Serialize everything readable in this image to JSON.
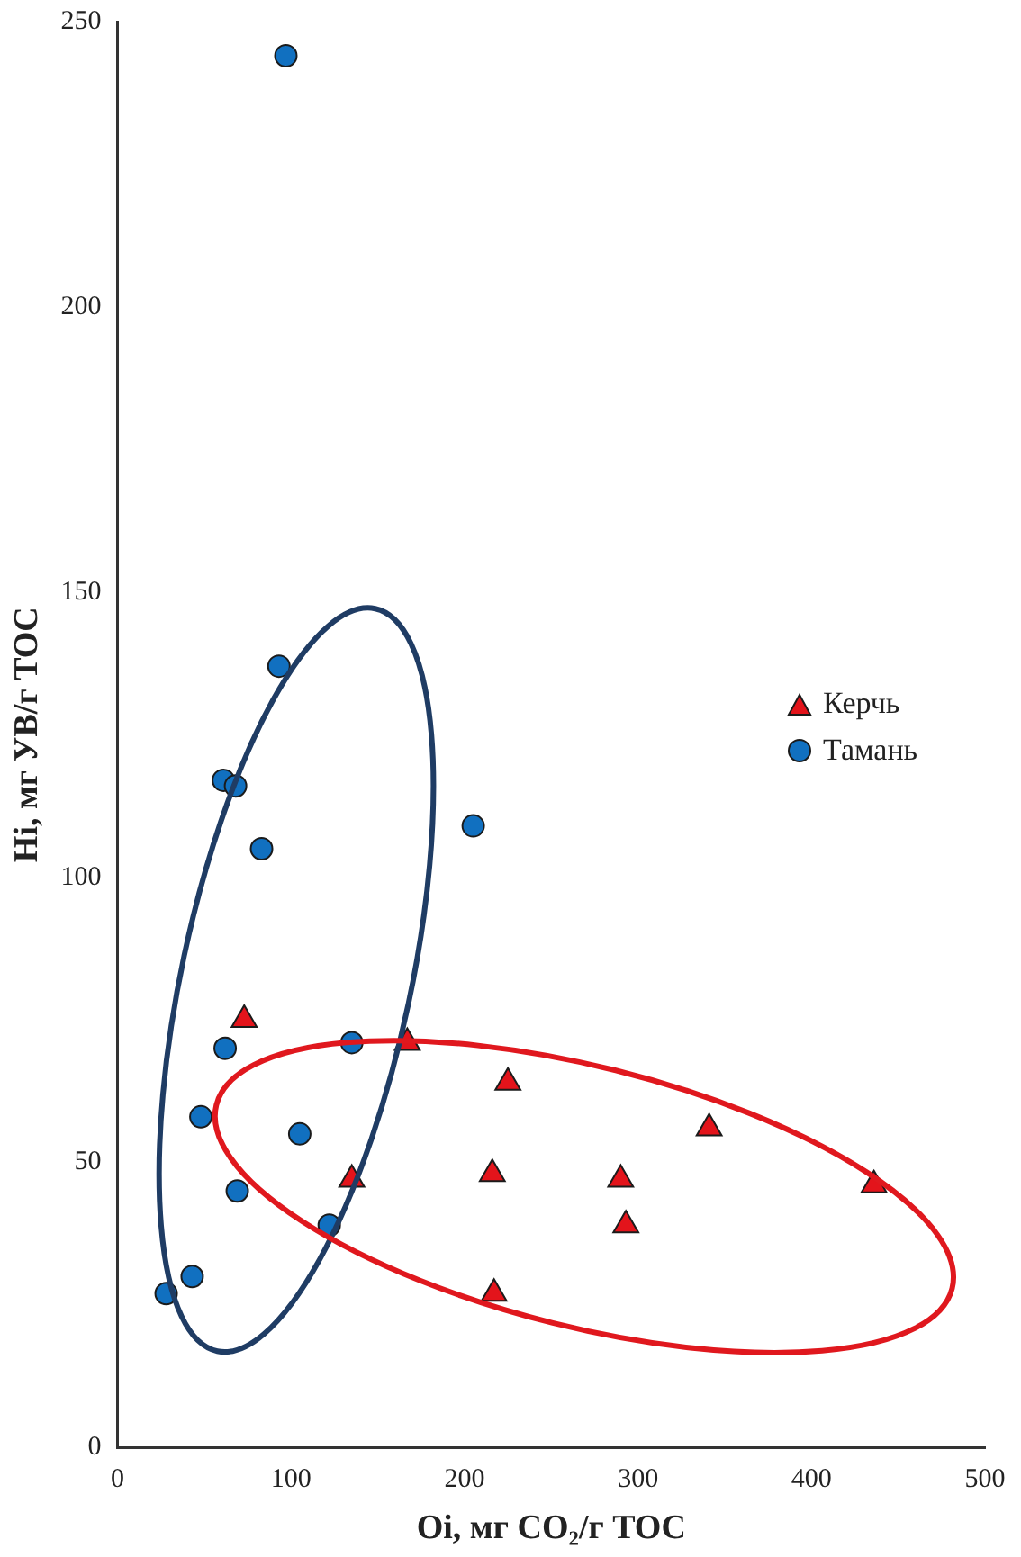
{
  "chart_data": {
    "type": "scatter",
    "xlabel": "Oi, мг CO₂/г TOC",
    "ylabel": "Hi, мг УВ/г TOC",
    "xlim": [
      0,
      500
    ],
    "xticks": [
      0,
      100,
      200,
      300,
      400,
      500
    ],
    "ylim": [
      0,
      250
    ],
    "yticks": [
      0,
      50,
      100,
      150,
      200,
      250
    ],
    "grid": false,
    "legend": "right",
    "series": [
      {
        "name": "Керчь",
        "color": "#e3141b",
        "marker": "triangle",
        "x": [
          73,
          167,
          225,
          216,
          135,
          217,
          290,
          293,
          341,
          436
        ],
        "values": [
          75,
          71,
          64,
          48,
          47,
          27,
          47,
          39,
          56,
          46
        ]
      },
      {
        "name": "Тамань",
        "color": "#1170c0",
        "marker": "circle",
        "x": [
          97,
          93,
          61,
          68,
          83,
          205,
          62,
          135,
          48,
          105,
          69,
          122,
          43,
          28
        ],
        "values": [
          244,
          137,
          117,
          116,
          105,
          109,
          70,
          71,
          58,
          55,
          45,
          39,
          30,
          27
        ]
      }
    ]
  }
}
